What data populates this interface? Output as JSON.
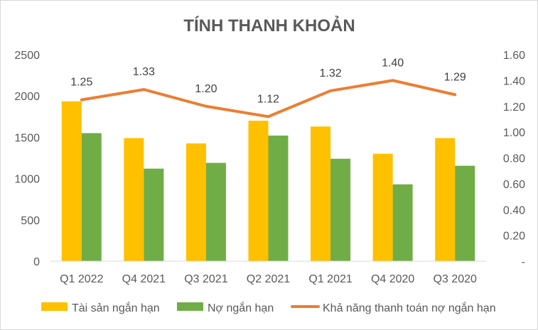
{
  "chart_data": {
    "type": "bar",
    "title": "TÍNH THANH KHOẢN",
    "categories": [
      "Q1 2022",
      "Q4 2021",
      "Q3 2021",
      "Q2 2021",
      "Q1 2021",
      "Q4 2020",
      "Q3 2020"
    ],
    "series": [
      {
        "name": "Tài sản ngắn hạn",
        "type": "bar",
        "axis": "left",
        "color": "#ffc000",
        "values": [
          1935,
          1490,
          1425,
          1700,
          1630,
          1300,
          1490
        ]
      },
      {
        "name": "Nợ ngắn hạn",
        "type": "bar",
        "axis": "left",
        "color": "#70ad47",
        "values": [
          1550,
          1120,
          1190,
          1520,
          1240,
          930,
          1155
        ]
      },
      {
        "name": "Khả năng thanh toán nợ ngắn hạn",
        "type": "line",
        "axis": "right",
        "color": "#ed7d31",
        "values": [
          1.25,
          1.33,
          1.2,
          1.12,
          1.32,
          1.4,
          1.29
        ],
        "labels": [
          "1.25",
          "1.33",
          "1.20",
          "1.12",
          "1.32",
          "1.40",
          "1.29"
        ]
      }
    ],
    "y_left": {
      "min": 0,
      "max": 2500,
      "ticks": [
        "0",
        "500",
        "1000",
        "1500",
        "2000",
        "2500"
      ]
    },
    "y_right": {
      "min": 0,
      "max": 1.6,
      "ticks": [
        "-",
        "0.20",
        "0.40",
        "0.60",
        "0.80",
        "1.00",
        "1.20",
        "1.40",
        "1.60"
      ]
    },
    "grid": false,
    "legend_position": "bottom"
  }
}
